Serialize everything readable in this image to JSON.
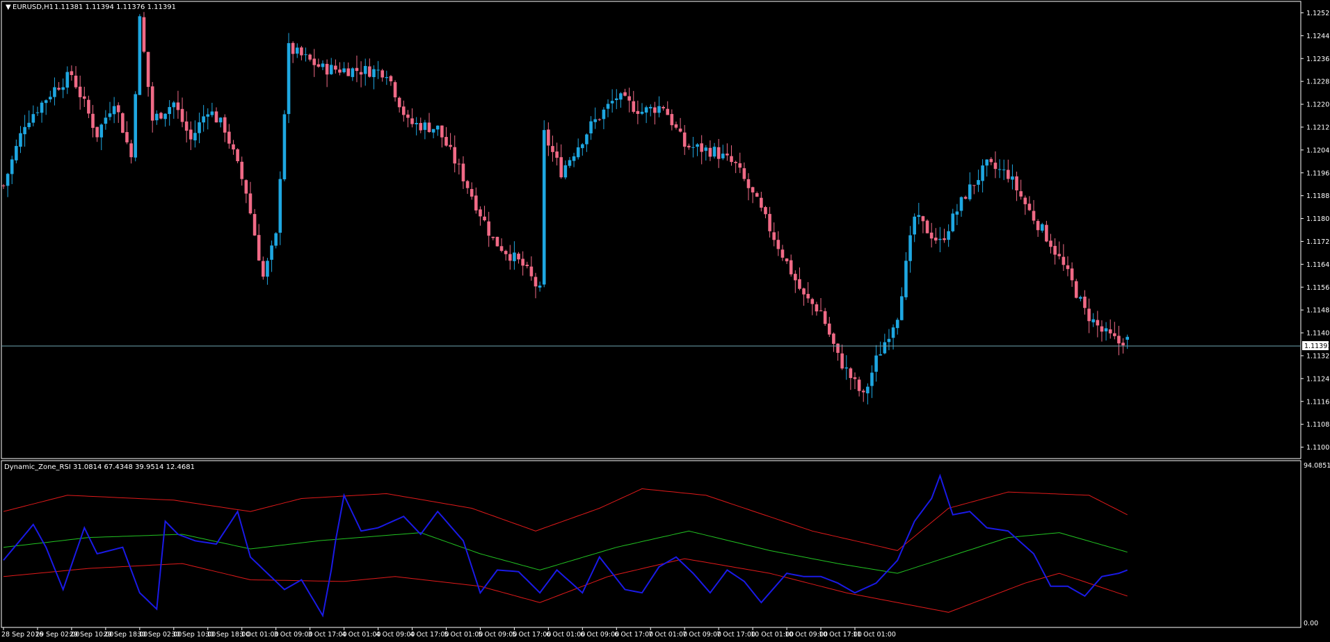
{
  "header": {
    "symbol_label": "EURUSD,H1",
    "ohlc_label": "1.11381 1.11394 1.11376 1.11391"
  },
  "indicator": {
    "label": "Dynamic_Zone_RSI 31.0814 67.4348 39.9514 12.4681",
    "top_value_label": "94.0851",
    "bottom_value_label": "0.00"
  },
  "price_axis": {
    "ticks": [
      "1.12525",
      "1.12445",
      "1.12365",
      "1.12285",
      "1.12205",
      "1.12125",
      "1.12045",
      "1.11965",
      "1.11885",
      "1.11805",
      "1.11725",
      "1.11645",
      "1.11565",
      "1.11485",
      "1.11405",
      "1.11325",
      "1.11245",
      "1.11165",
      "1.11085",
      "1.11005"
    ],
    "current_price": "1.11391"
  },
  "time_axis": {
    "labels": [
      "28 Sep 2016",
      "29 Sep 02:00",
      "29 Sep 10:00",
      "29 Sep 18:00",
      "30 Sep 02:00",
      "30 Sep 10:00",
      "30 Sep 18:00",
      "3 Oct 01:00",
      "3 Oct 09:00",
      "3 Oct 17:00",
      "4 Oct 01:00",
      "4 Oct 09:00",
      "4 Oct 17:00",
      "5 Oct 01:00",
      "5 Oct 09:00",
      "5 Oct 17:00",
      "6 Oct 01:00",
      "6 Oct 09:00",
      "6 Oct 17:00",
      "7 Oct 01:00",
      "7 Oct 09:00",
      "7 Oct 17:00",
      "10 Oct 01:00",
      "10 Oct 09:00",
      "10 Oct 17:00",
      "11 Oct 01:00"
    ]
  },
  "colors": {
    "bull": "#1ea7e1",
    "bear": "#f06a86",
    "background": "#000000",
    "frame": "#ffffff",
    "grid_price_line": "#6fa7b5",
    "rsi": "#1a1ae6",
    "band_upper": "#e11a1a",
    "band_mid": "#22c422",
    "band_lower": "#e11a1a"
  },
  "chart_data": {
    "type": "candlestick",
    "series_name": "EURUSD,H1",
    "price_range": [
      1.10965,
      1.12565
    ],
    "close_anchors": [
      [
        0,
        1.1192
      ],
      [
        5,
        1.1214
      ],
      [
        12,
        1.1226
      ],
      [
        16,
        1.1231
      ],
      [
        22,
        1.121
      ],
      [
        26,
        1.1222
      ],
      [
        30,
        1.1202
      ],
      [
        32,
        1.125
      ],
      [
        35,
        1.1215
      ],
      [
        40,
        1.1221
      ],
      [
        44,
        1.1208
      ],
      [
        48,
        1.1219
      ],
      [
        52,
        1.1212
      ],
      [
        57,
        1.119
      ],
      [
        61,
        1.116
      ],
      [
        64,
        1.1174
      ],
      [
        67,
        1.124
      ],
      [
        75,
        1.1233
      ],
      [
        90,
        1.1232
      ],
      [
        95,
        1.1214
      ],
      [
        102,
        1.1212
      ],
      [
        108,
        1.1195
      ],
      [
        115,
        1.1173
      ],
      [
        122,
        1.1164
      ],
      [
        126,
        1.1155
      ],
      [
        127,
        1.121
      ],
      [
        131,
        1.1197
      ],
      [
        138,
        1.1213
      ],
      [
        144,
        1.1223
      ],
      [
        150,
        1.1218
      ],
      [
        155,
        1.122
      ],
      [
        160,
        1.1206
      ],
      [
        167,
        1.1204
      ],
      [
        172,
        1.1199
      ],
      [
        177,
        1.1186
      ],
      [
        181,
        1.1174
      ],
      [
        188,
        1.1153
      ],
      [
        192,
        1.1148
      ],
      [
        196,
        1.1132
      ],
      [
        202,
        1.1118
      ],
      [
        205,
        1.1131
      ],
      [
        210,
        1.1147
      ],
      [
        214,
        1.1181
      ],
      [
        220,
        1.1172
      ],
      [
        226,
        1.1189
      ],
      [
        231,
        1.1199
      ],
      [
        236,
        1.1196
      ],
      [
        241,
        1.1183
      ],
      [
        246,
        1.1172
      ],
      [
        251,
        1.1158
      ],
      [
        254,
        1.1148
      ],
      [
        258,
        1.1141
      ],
      [
        262,
        1.1137
      ],
      [
        264,
        1.1139
      ]
    ],
    "rsi_anchors": [
      [
        0,
        40
      ],
      [
        7,
        62
      ],
      [
        10,
        48
      ],
      [
        14,
        22
      ],
      [
        19,
        60
      ],
      [
        22,
        44
      ],
      [
        28,
        48
      ],
      [
        32,
        20
      ],
      [
        36,
        10
      ],
      [
        38,
        64
      ],
      [
        41,
        56
      ],
      [
        45,
        52
      ],
      [
        50,
        50
      ],
      [
        55,
        70
      ],
      [
        58,
        42
      ],
      [
        62,
        32
      ],
      [
        66,
        22
      ],
      [
        70,
        28
      ],
      [
        75,
        6
      ],
      [
        77,
        34
      ],
      [
        78,
        52
      ],
      [
        80,
        80
      ],
      [
        84,
        58
      ],
      [
        88,
        60
      ],
      [
        94,
        67
      ],
      [
        98,
        56
      ],
      [
        102,
        70
      ],
      [
        108,
        52
      ],
      [
        112,
        20
      ],
      [
        116,
        34
      ],
      [
        121,
        33
      ],
      [
        126,
        20
      ],
      [
        130,
        34
      ],
      [
        136,
        20
      ],
      [
        140,
        42
      ],
      [
        146,
        22
      ],
      [
        150,
        20
      ],
      [
        154,
        36
      ],
      [
        158,
        42
      ],
      [
        162,
        32
      ],
      [
        166,
        20
      ],
      [
        170,
        34
      ],
      [
        174,
        27
      ],
      [
        178,
        14
      ],
      [
        184,
        32
      ],
      [
        188,
        30
      ],
      [
        192,
        30
      ],
      [
        196,
        26
      ],
      [
        200,
        20
      ],
      [
        205,
        26
      ],
      [
        210,
        40
      ],
      [
        214,
        64
      ],
      [
        218,
        78
      ],
      [
        220,
        92
      ],
      [
        223,
        68
      ],
      [
        227,
        70
      ],
      [
        231,
        60
      ],
      [
        236,
        58
      ],
      [
        242,
        44
      ],
      [
        246,
        24
      ],
      [
        250,
        24
      ],
      [
        254,
        18
      ],
      [
        258,
        30
      ],
      [
        262,
        32
      ],
      [
        264,
        34
      ]
    ],
    "upper_band_anchors": [
      [
        0,
        70
      ],
      [
        15,
        80
      ],
      [
        40,
        77
      ],
      [
        58,
        70
      ],
      [
        70,
        78
      ],
      [
        90,
        81
      ],
      [
        110,
        72
      ],
      [
        125,
        58
      ],
      [
        140,
        72
      ],
      [
        150,
        84
      ],
      [
        165,
        80
      ],
      [
        190,
        58
      ],
      [
        210,
        46
      ],
      [
        222,
        72
      ],
      [
        236,
        82
      ],
      [
        255,
        80
      ],
      [
        264,
        68
      ]
    ],
    "mid_band_anchors": [
      [
        0,
        48
      ],
      [
        20,
        54
      ],
      [
        42,
        56
      ],
      [
        58,
        47
      ],
      [
        74,
        52
      ],
      [
        98,
        57
      ],
      [
        112,
        44
      ],
      [
        126,
        34
      ],
      [
        144,
        48
      ],
      [
        161,
        58
      ],
      [
        180,
        46
      ],
      [
        196,
        38
      ],
      [
        210,
        32
      ],
      [
        236,
        54
      ],
      [
        248,
        57
      ],
      [
        264,
        45
      ]
    ],
    "lower_band_anchors": [
      [
        0,
        30
      ],
      [
        20,
        35
      ],
      [
        42,
        38
      ],
      [
        58,
        28
      ],
      [
        80,
        27
      ],
      [
        92,
        30
      ],
      [
        112,
        24
      ],
      [
        126,
        14
      ],
      [
        142,
        30
      ],
      [
        160,
        41
      ],
      [
        180,
        32
      ],
      [
        198,
        20
      ],
      [
        222,
        8
      ],
      [
        240,
        26
      ],
      [
        248,
        32
      ],
      [
        264,
        18
      ]
    ]
  }
}
